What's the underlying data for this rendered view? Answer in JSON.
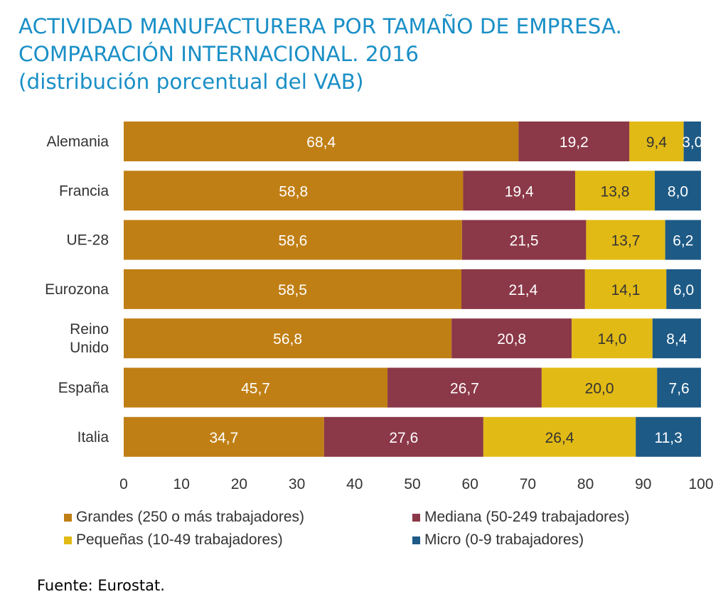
{
  "title_lines": [
    "ACTIVIDAD MANUFACTURERA POR TAMAÑO DE EMPRESA.",
    "COMPARACIÓN INTERNACIONAL. 2016",
    "(distribución porcentual del VAB)"
  ],
  "source": "Fuente: Eurostat.",
  "chart_data": {
    "type": "bar",
    "orientation": "horizontal",
    "stacked": true,
    "categories": [
      "Alemania",
      "Francia",
      "UE-28",
      "Eurozona",
      "Reino Unido",
      "España",
      "Italia"
    ],
    "category_lines": [
      [
        "Alemania"
      ],
      [
        "Francia"
      ],
      [
        "UE-28"
      ],
      [
        "Eurozona"
      ],
      [
        "Reino",
        "Unido"
      ],
      [
        "España"
      ],
      [
        "Italia"
      ]
    ],
    "series": [
      {
        "name": "Grandes (250 o más trabajadores)",
        "color": "#c07f14",
        "values": [
          68.4,
          58.8,
          58.6,
          58.5,
          56.8,
          45.7,
          34.7
        ],
        "labels": [
          "68,4",
          "58,8",
          "58,6",
          "58,5",
          "56,8",
          "45,7",
          "34,7"
        ]
      },
      {
        "name": "Mediana (50-249 trabajadores)",
        "color": "#8b3848",
        "values": [
          19.2,
          19.4,
          21.5,
          21.4,
          20.8,
          26.7,
          27.6
        ],
        "labels": [
          "19,2",
          "19,4",
          "21,5",
          "21,4",
          "20,8",
          "26,7",
          "27,6"
        ]
      },
      {
        "name": "Pequeñas (10-49 trabajadores)",
        "color": "#e2ba15",
        "values": [
          9.4,
          13.8,
          13.7,
          14.1,
          14.0,
          20.0,
          26.4
        ],
        "labels": [
          "9,4",
          "13,8",
          "13,7",
          "14,1",
          "14,0",
          "20,0",
          "26,4"
        ]
      },
      {
        "name": "Micro (0-9 trabajadores)",
        "color": "#1d5a86",
        "values": [
          3.0,
          8.0,
          6.2,
          6.0,
          8.4,
          7.6,
          11.3
        ],
        "labels": [
          "3,0",
          "8,0",
          "6,2",
          "6,0",
          "8,4",
          "7,6",
          "11,3"
        ]
      }
    ],
    "xlim": [
      0,
      100
    ],
    "xticks": [
      "0",
      "10",
      "20",
      "30",
      "40",
      "50",
      "60",
      "70",
      "80",
      "90",
      "100"
    ],
    "grid": false,
    "legend_position": "bottom"
  }
}
